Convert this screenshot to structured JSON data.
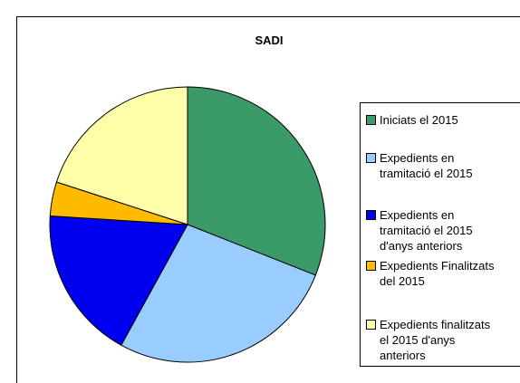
{
  "chart_data": {
    "type": "pie",
    "title": "SADI",
    "categories": [
      "Iniciats el 2015",
      "Expedients en tramitació el 2015",
      "Expedients en tramitació el 2015 d'anys anteriors",
      "Expedients Finalitzats del 2015",
      "Expedients finalitzats el 2015 d'anys anteriors"
    ],
    "values": [
      31,
      27,
      18,
      4,
      20
    ],
    "colors": [
      "#3a9a68",
      "#99ccff",
      "#0000ee",
      "#ffbb00",
      "#ffffaa"
    ],
    "legend": "right"
  }
}
